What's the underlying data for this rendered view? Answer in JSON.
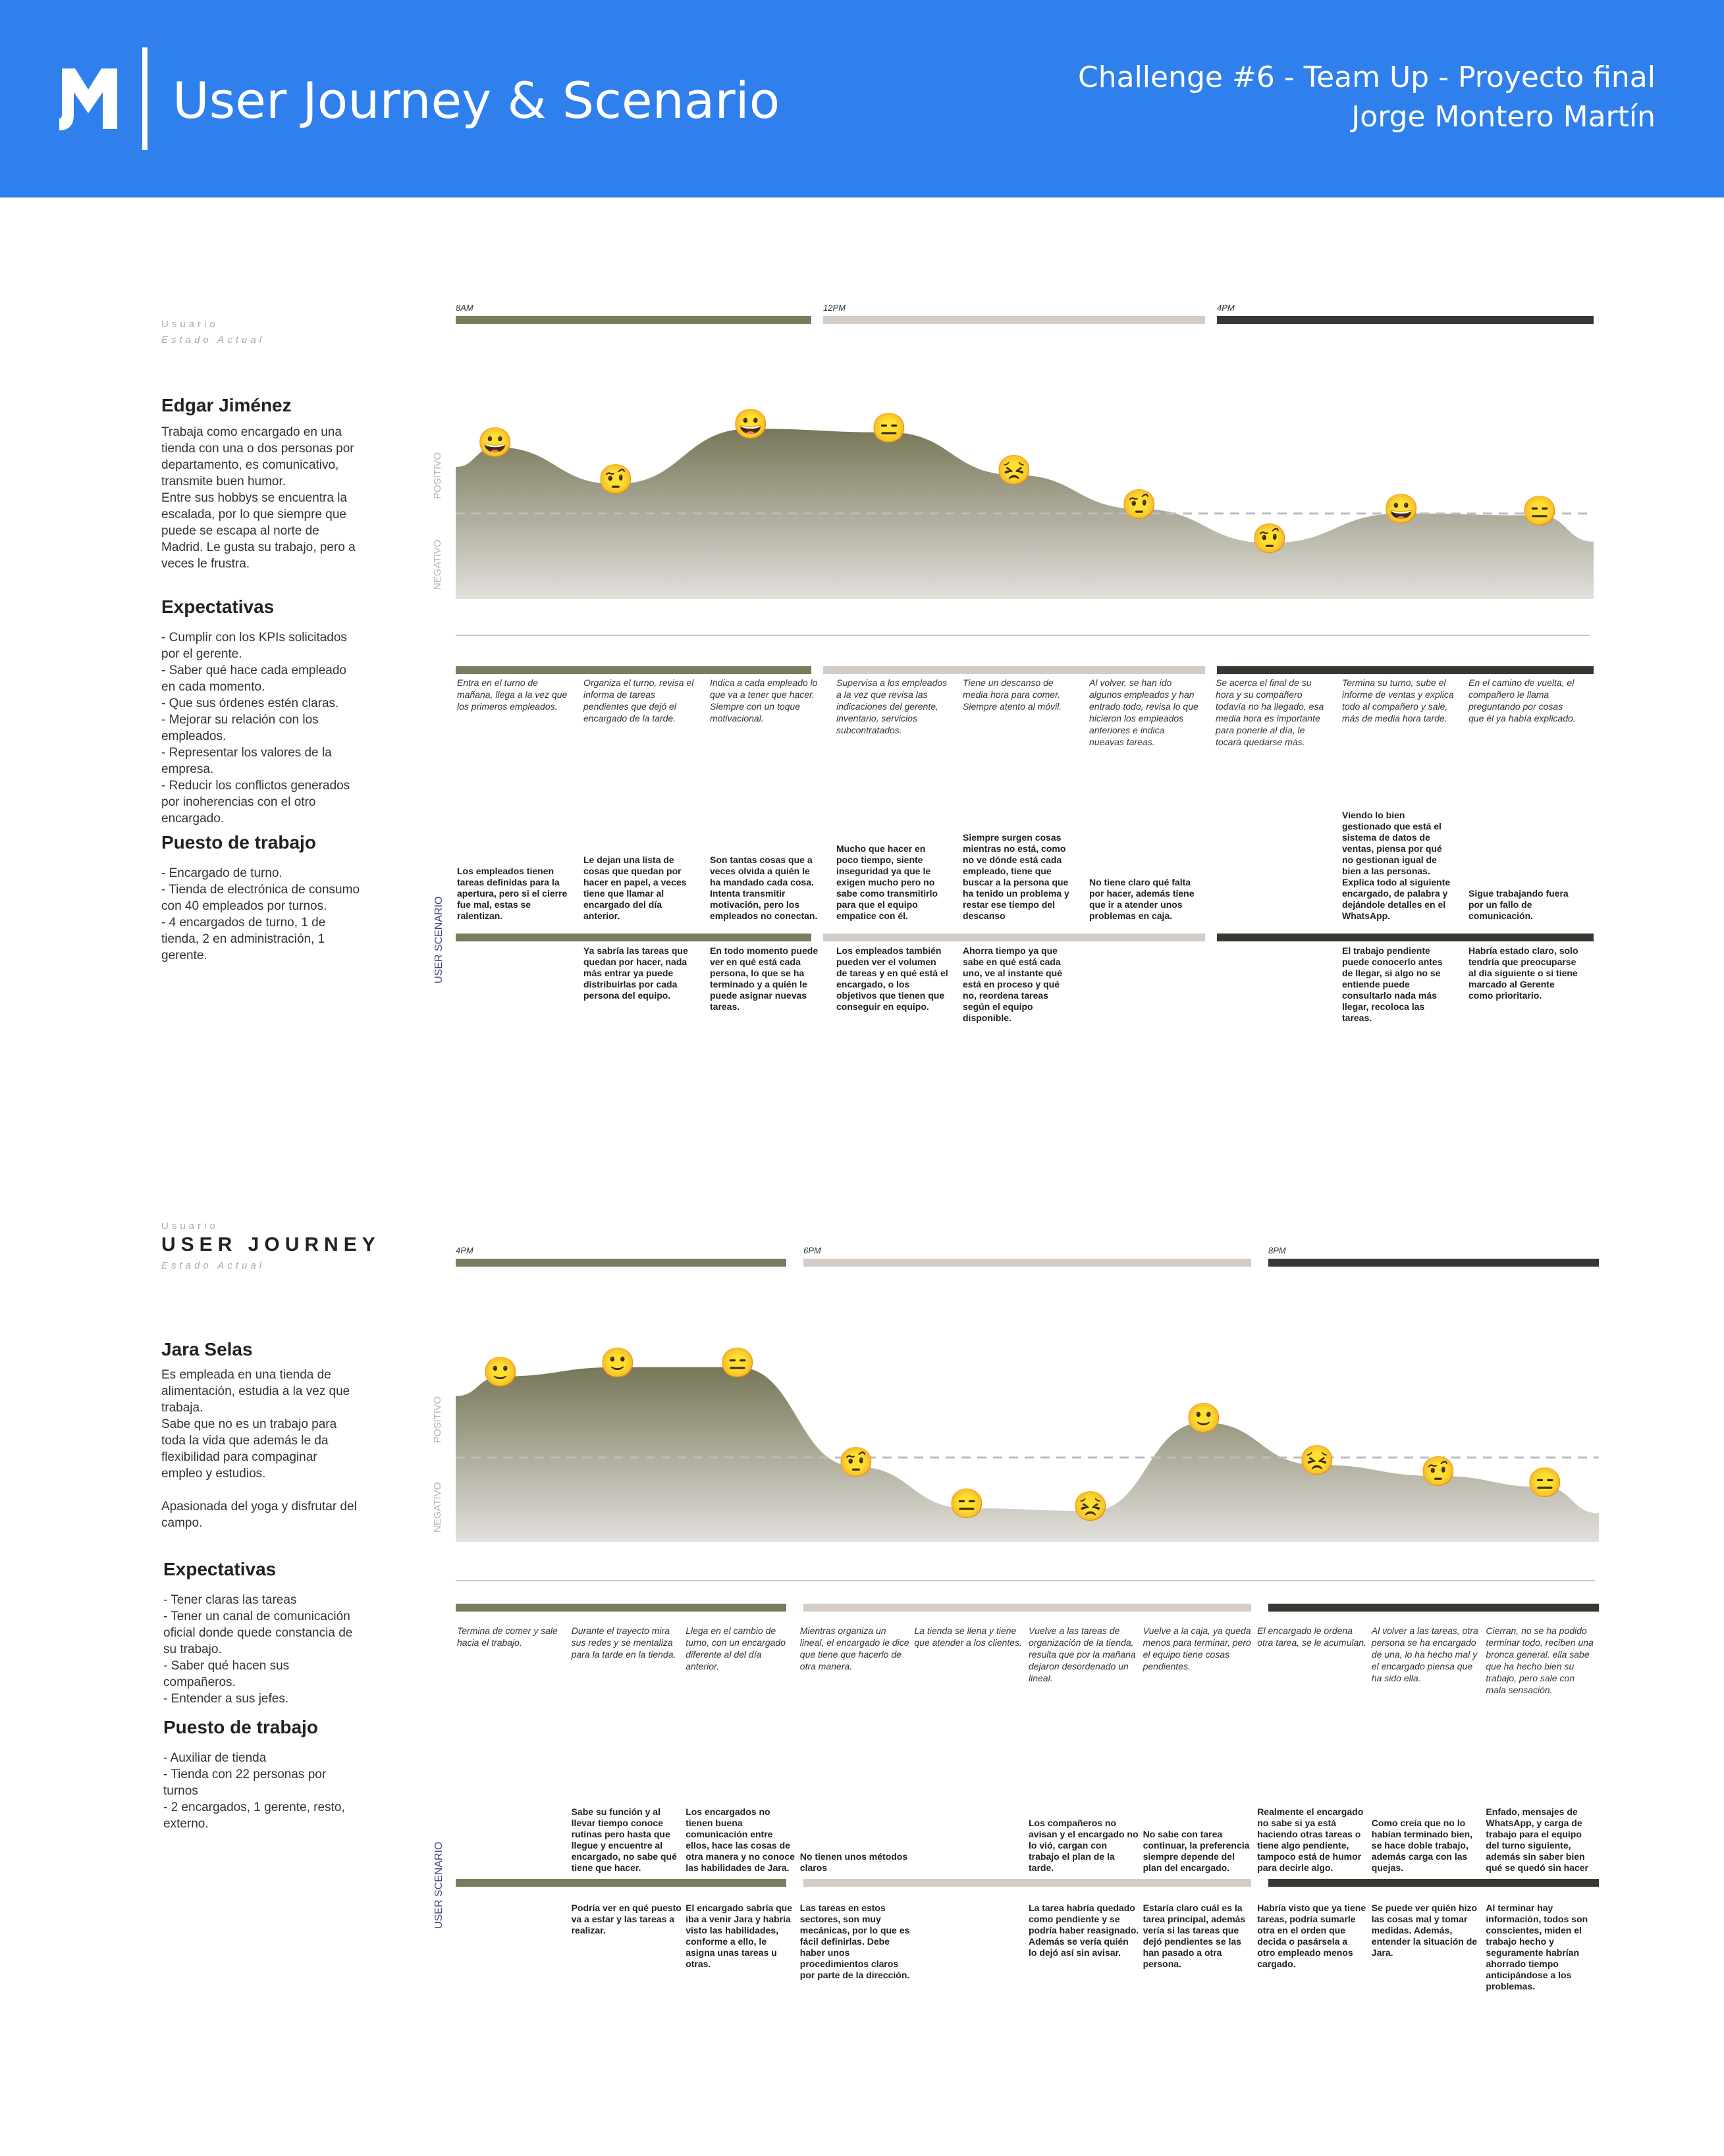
{
  "header": {
    "logo_text": "JM",
    "title": "User Journey & Scenario",
    "right_line1": "Challenge #6 - Team Up - Proyecto final",
    "right_line2": "Jorge Montero Martín"
  },
  "colors": {
    "header_bg": "#2f80ec",
    "phase1": "#7b7b5e",
    "phase2": "#d4ccc6",
    "phase3": "#3a3631",
    "curve_top": "#777758",
    "curve_bottom": "#e2e0dc"
  },
  "journeys": [
    {
      "usuario_label": "Usuario",
      "user_journey_label": "",
      "estado_label": "Estado Actual",
      "name": "Edgar Jiménez",
      "bio": "Trabaja como encargado en una\ntienda con una o dos personas por\ndepartamento, es comunicativo,\ntransmite buen humor.\nEntre sus hobbys se encuentra la\nescalada, por lo que siempre que\npuede se escapa al norte de\nMadrid. Le gusta su trabajo, pero a\nveces le frustra.",
      "expect_title": "Expectativas",
      "expect_text": "- Cumplir con los KPIs solicitados\npor el gerente.\n- Saber qué hace cada empleado\nen cada momento.\n- Que sus órdenes estén claras.\n- Mejorar su relación con los\nempleados.\n- Representar los valores de la\nempresa.\n- Reducir los conflictos generados\npor inoherencias con el otro\nencargado.",
      "job_title": "Puesto de trabajo",
      "job_text": "- Encargado de turno.\n- Tienda de electrónica de consumo\ncon 40 empleados por turnos.\n- 4 encargados de turno, 1 de\ntienda, 2 en administración, 1\ngerente.",
      "phases": [
        {
          "time": "8AM"
        },
        {
          "time": "12PM"
        },
        {
          "time": "4PM"
        }
      ],
      "positivo_label": "POSITIVO",
      "negativo_label": "NEGATIVO",
      "scenario_label": "USER SCENARIO",
      "emotion": [
        0.72,
        0.32,
        0.92,
        0.88,
        0.42,
        0.05,
        -0.32,
        0.0,
        -0.02
      ],
      "emojis": [
        "😀",
        "🤨",
        "😀",
        "😑",
        "😣",
        "🤨",
        "🤨",
        "😀",
        "😑"
      ],
      "steps": [
        {
          "desc": "Entra en el turno de mañana, llega a la vez que los primeros empleados.",
          "top": "Los empleados tienen tareas definidas para la apertura, pero si el cierre fue mal, estas se ralentizan.",
          "bottom": ""
        },
        {
          "desc": "Organiza el turno, revisa el informa de tareas pendientes que dejó el encargado de la tarde.",
          "top": "Le dejan una lista de cosas que quedan por hacer en papel, a veces tiene que llamar al encargado del día anterior.",
          "bottom": "Ya sabría las tareas que quedan por hacer, nada más entrar ya puede distribuirlas por cada persona del equipo."
        },
        {
          "desc": "Indica a cada empleado lo que va a tener que hacer. Siempre con un toque motivacional.",
          "top": "Son tantas cosas que a veces olvida a quién le ha mandado cada cosa. Intenta transmitir motivación, pero los empleados no conectan.",
          "bottom": "En todo momento puede ver en qué está cada persona, lo que se ha terminado y a quién le puede asignar nuevas tareas."
        },
        {
          "desc": "Supervisa a los empleados a la vez que revisa las indicaciones del gerente, inventario, servicios subcontratados.",
          "top": "Mucho que hacer en poco tiempo, siente inseguridad ya que le exigen mucho pero no sabe como transmitirlo para que el equipo empatice con él.",
          "bottom": "Los empleados también pueden ver el volumen de tareas y en qué está el encargado, o los objetivos que tienen que conseguir en equipo."
        },
        {
          "desc": "Tiene un descanso de media hora para comer. Siempre atento al móvil.",
          "top": "Siempre surgen cosas mientras no está, como no ve dónde está cada empleado, tiene que buscar a la persona que ha tenido un problema y restar ese tiempo del descanso",
          "bottom": "Ahorra tiempo ya que sabe en qué está cada uno, ve al instante qué está en proceso y qué no, reordena tareas según el equipo disponible."
        },
        {
          "desc": "Al volver, se han ido algunos empleados y han entrado todo, revisa lo que hicieron los empleados anteriores e indica nueavas tareas.",
          "top": "No tiene claro qué falta por hacer, además tiene que ir a atender unos problemas en caja.",
          "bottom": ""
        },
        {
          "desc": "Se acerca el final de su hora y su compañero todavía no ha llegado, esa media hora es importante para ponerle al día, le tocará quedarse más.",
          "top": "",
          "bottom": ""
        },
        {
          "desc": "Termina su turno, sube el informe de ventas y explica todo al compañero y sale, más de media hora tarde.",
          "top": "Viendo lo bien gestionado que está el sistema de datos de ventas, piensa por qué no gestionan igual de bien a las personas. Explica todo al siguiente encargado, de palabra y dejándole detalles en el WhatsApp.",
          "bottom": "El trabajo pendiente puede conocerlo antes de llegar, si algo no se entiende puede consultarlo nada más llegar, recoloca las tareas."
        },
        {
          "desc": "En el camino de vuelta, el compañero le llama preguntando por cosas que él ya había explicado.",
          "top": "Sigue trabajando fuera por un fallo de comunicación.",
          "bottom": "Habría estado claro, solo tendría que preocuparse al día siguiente o si tiene marcado al Gerente como prioritario."
        }
      ]
    },
    {
      "usuario_label": "Usuario",
      "user_journey_label": "USER JOURNEY",
      "estado_label": "Estado Actual",
      "name": "Jara Selas",
      "bio": "Es empleada en una tienda de\nalimentación, estudia a la vez que\ntrabaja.\nSabe que no es un trabajo para\ntoda la vida que además le da\nflexibilidad para compaginar\nempleo y estudios.\n\nApasionada del yoga y disfrutar del\ncampo.",
      "expect_title": "Expectativas",
      "expect_text": "- Tener claras las tareas\n- Tener un canal de comunicación\noficial donde quede constancia de\nsu trabajo.\n- Saber qué hacen sus\ncompañeros.\n- Entender a sus jefes.",
      "job_title": "Puesto de trabajo",
      "job_text": "- Auxiliar de tienda\n- Tienda con 22 personas por\nturnos\n- 2 encargados, 1 gerente, resto,\nexterno.",
      "phases": [
        {
          "time": "4PM"
        },
        {
          "time": "6PM"
        },
        {
          "time": "8PM"
        }
      ],
      "positivo_label": "POSITIVO",
      "negativo_label": "NEGATIVO",
      "scenario_label": "USER SCENARIO",
      "emotion": [
        0.88,
        0.98,
        0.98,
        -0.1,
        -0.55,
        -0.58,
        0.38,
        -0.08,
        -0.2,
        -0.32
      ],
      "emojis": [
        "🙂",
        "🙂",
        "😑",
        "🤨",
        "😑",
        "😣",
        "🙂",
        "😣",
        "🤨",
        "😑"
      ],
      "steps": [
        {
          "desc": "Termina de comer y sale hacia el trabajo.",
          "top": "",
          "bottom": ""
        },
        {
          "desc": "Durante el trayecto mira sus redes y se mentaliza para la tarde en la tienda.",
          "top": "Sabe su función y al llevar tiempo conoce rutinas pero hasta que llegue y encuentre al encargado, no sabe qué tiene que hacer.",
          "bottom": "Podría ver en qué puesto va a estar y las tareas a realizar."
        },
        {
          "desc": "Llega en el cambio de turno, con un encargado diferente al del día anterior.",
          "top": "Los encargados no tienen buena comunicación entre ellos, hace las cosas de otra manera y no conoce las habilidades de Jara.",
          "bottom": "El encargado sabría que iba a venir Jara y habría visto las habilidades, conforme a ello, le asigna unas tareas u otras."
        },
        {
          "desc": "Mientras organiza un lineal, el encargado le dice que tiene que hacerlo de otra manera.",
          "top": "No tienen unos métodos claros",
          "bottom": "Las tareas en estos sectores, son muy mecánicas, por lo que es fácil definirlas. Debe haber unos procedimientos claros por parte de la dirección."
        },
        {
          "desc": "La tienda se llena y tiene que atender a los clientes.",
          "top": "",
          "bottom": ""
        },
        {
          "desc": "Vuelve a las tareas de organización de la tienda, resulta que por la mañana dejaron desordenado un lineal.",
          "top": "Los compañeros no avisan y el encargado no lo vió, cargan con trabajo el plan de la tarde.",
          "bottom": "La tarea habría quedado como pendiente y se podría haber reasignado. Además se vería quién lo dejó así sin avisar."
        },
        {
          "desc": "Vuelve a la caja, ya queda menos para terminar, pero el equipo tiene cosas pendientes.",
          "top": "No sabe con tarea continuar, la preferencia siempre depende del plan del encargado.",
          "bottom": "Estaría claro cuál es la tarea principal, además vería si las tareas que dejó pendientes se las han pasado a otra persona."
        },
        {
          "desc": "El encargado le ordena otra tarea, se le acumulan.",
          "top": "Realmente el encargado no sabe si ya está haciendo otras tareas o tiene algo pendiente, tampoco está de humor para decirle algo.",
          "bottom": "Habría visto que ya tiene tareas, podría sumarle otra en el orden que decida o pasársela a otro empleado menos cargado."
        },
        {
          "desc": "Al volver a las tareas, otra persona se ha encargado de una, lo ha hecho mal y el encargado piensa que ha sido ella.",
          "top": "Como creía que no lo habían terminado bien, se hace doble trabajo, además carga con las quejas.",
          "bottom": "Se puede ver quién hizo las cosas mal y tomar medidas. Además, entender la situación de Jara."
        },
        {
          "desc": "Cierran, no se ha podido terminar todo, reciben una bronca general. ella sabe que ha hecho bien su trabajo, pero sale con mala sensación.",
          "top": "Enfado, mensajes de WhatsApp, y carga de trabajo para el equipo del turno siguiente, además sin saber bien qué se quedó sin hacer",
          "bottom": "Al terminar hay información, todos son conscientes, miden el trabajo hecho y seguramente habrían ahorrado tiempo anticipándose a los problemas."
        }
      ]
    }
  ]
}
